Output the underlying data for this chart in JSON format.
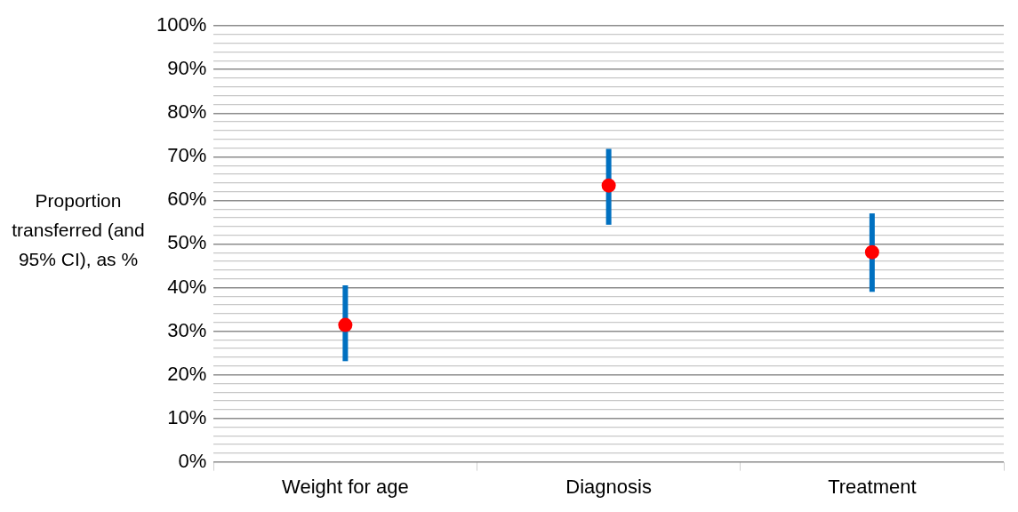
{
  "chart_data": {
    "type": "scatter",
    "ylabel": "Proportion transferred (and 95% CI), as %",
    "categories": [
      "Weight for age",
      "Diagnosis",
      "Treatment"
    ],
    "series": [
      {
        "color": "#ff0000",
        "values": [
          31.4,
          63.4,
          48.1
        ],
        "errors": [
          [
            23.1,
            40.5
          ],
          [
            54.4,
            71.8
          ],
          [
            39,
            57
          ]
        ]
      }
    ],
    "ylim": [
      0,
      100
    ],
    "yticks": [
      {
        "value": 0,
        "label": "0%"
      },
      {
        "value": 2,
        "label": null
      },
      {
        "value": 4,
        "label": null
      },
      {
        "value": 6,
        "label": null
      },
      {
        "value": 8,
        "label": null
      },
      {
        "value": 10,
        "label": "10%"
      },
      {
        "value": 12,
        "label": null
      },
      {
        "value": 14,
        "label": null
      },
      {
        "value": 16,
        "label": null
      },
      {
        "value": 18,
        "label": null
      },
      {
        "value": 20,
        "label": "20%"
      },
      {
        "value": 22,
        "label": null
      },
      {
        "value": 24,
        "label": null
      },
      {
        "value": 26,
        "label": null
      },
      {
        "value": 28,
        "label": null
      },
      {
        "value": 30,
        "label": "30%"
      },
      {
        "value": 32,
        "label": null
      },
      {
        "value": 34,
        "label": null
      },
      {
        "value": 36,
        "label": null
      },
      {
        "value": 38,
        "label": null
      },
      {
        "value": 40,
        "label": "40%"
      },
      {
        "value": 42,
        "label": null
      },
      {
        "value": 44,
        "label": null
      },
      {
        "value": 46,
        "label": null
      },
      {
        "value": 48,
        "label": null
      },
      {
        "value": 50,
        "label": "50%"
      },
      {
        "value": 52,
        "label": null
      },
      {
        "value": 54,
        "label": null
      },
      {
        "value": 56,
        "label": null
      },
      {
        "value": 58,
        "label": null
      },
      {
        "value": 60,
        "label": "60%"
      },
      {
        "value": 62,
        "label": null
      },
      {
        "value": 64,
        "label": null
      },
      {
        "value": 66,
        "label": null
      },
      {
        "value": 68,
        "label": null
      },
      {
        "value": 70,
        "label": "70%"
      },
      {
        "value": 72,
        "label": null
      },
      {
        "value": 74,
        "label": null
      },
      {
        "value": 76,
        "label": null
      },
      {
        "value": 78,
        "label": null
      },
      {
        "value": 80,
        "label": "80%"
      },
      {
        "value": 82,
        "label": null
      },
      {
        "value": 84,
        "label": null
      },
      {
        "value": 86,
        "label": null
      },
      {
        "value": 88,
        "label": null
      },
      {
        "value": 90,
        "label": "90%"
      },
      {
        "value": 92,
        "label": null
      },
      {
        "value": 94,
        "label": null
      },
      {
        "value": 96,
        "label": null
      },
      {
        "value": 98,
        "label": null
      },
      {
        "value": 100,
        "label": "100%"
      }
    ],
    "grid": "y",
    "marker": "circle",
    "legend": false
  }
}
